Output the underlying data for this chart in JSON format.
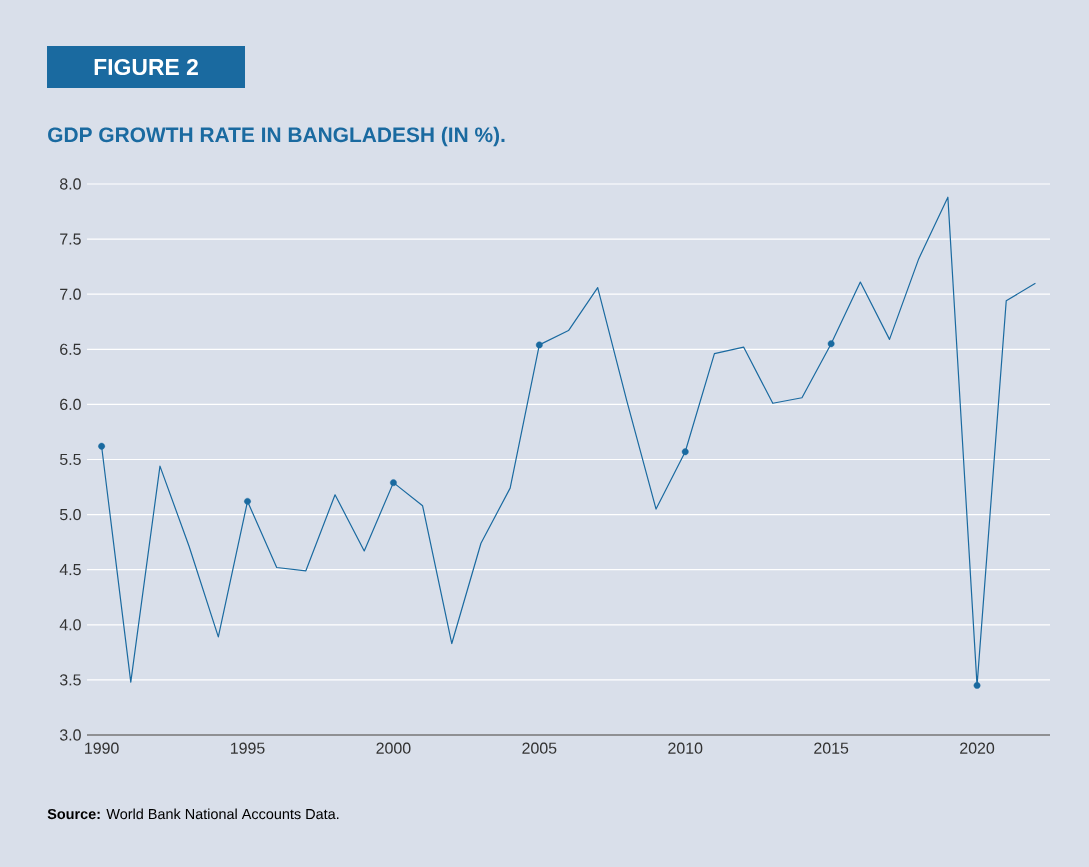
{
  "chart_data": {
    "type": "line",
    "title": "GDP GROWTH RATE IN BANGLADESH (IN %).",
    "annotations": [
      "FIGURE 2",
      "**Source:** World Bank National Accounts Data."
    ],
    "x": [
      1990,
      1991,
      1992,
      1993,
      1994,
      1995,
      1996,
      1997,
      1998,
      1999,
      2000,
      2001,
      2002,
      2003,
      2004,
      2005,
      2006,
      2007,
      2008,
      2009,
      2010,
      2011,
      2012,
      2013,
      2014,
      2015,
      2016,
      2017,
      2018,
      2019,
      2020,
      2021,
      2022
    ],
    "series": [
      {
        "color": "#1a6aa0",
        "values": [
          5.62,
          3.48,
          5.44,
          4.71,
          3.89,
          5.12,
          4.52,
          4.49,
          5.18,
          4.67,
          5.29,
          5.08,
          3.83,
          4.74,
          5.24,
          6.54,
          6.67,
          7.06,
          6.03,
          5.05,
          5.57,
          6.46,
          6.52,
          6.01,
          6.06,
          6.55,
          7.11,
          6.59,
          7.32,
          7.88,
          3.45,
          6.94,
          7.1
        ]
      },
      {
        "type": "scatter",
        "color": "#1a6aa0",
        "marker": "circle",
        "x": [
          1990,
          1995,
          2000,
          2005,
          2010,
          2015,
          2020
        ],
        "values": [
          5.62,
          5.12,
          5.29,
          6.54,
          5.57,
          6.55,
          3.45
        ]
      }
    ],
    "xlim": [
      1989.5,
      2022.5
    ],
    "xticks": [
      1990,
      1995,
      2000,
      2005,
      2010,
      2015,
      2020
    ],
    "ylim": [
      3,
      8
    ],
    "yticks": [
      {
        "value": 3,
        "label": "3.0"
      },
      {
        "value": 3.5,
        "label": "3.5"
      },
      {
        "value": 4,
        "label": "4.0"
      },
      {
        "value": 4.5,
        "label": "4.5"
      },
      {
        "value": 5,
        "label": "5.0"
      },
      {
        "value": 5.5,
        "label": "5.5"
      },
      {
        "value": 6,
        "label": "6.0"
      },
      {
        "value": 6.5,
        "label": "6.5"
      },
      {
        "value": 7,
        "label": "7.0"
      },
      {
        "value": 7.5,
        "label": "7.5"
      },
      {
        "value": 8,
        "label": "8.0"
      }
    ],
    "grid": "y"
  }
}
